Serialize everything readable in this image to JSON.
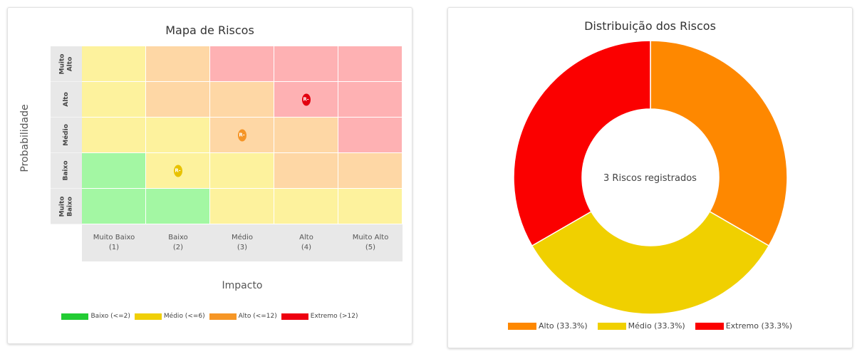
{
  "matrix": {
    "title": "Mapa de Riscos",
    "y_axis_label": "Probabilidade",
    "x_axis_label": "Impacto",
    "rows": [
      {
        "label_lines": [
          "Muito",
          "Alto"
        ],
        "cells": [
          "medium",
          "high",
          "extreme",
          "extreme",
          "extreme"
        ]
      },
      {
        "label_lines": [
          "Alto"
        ],
        "cells": [
          "medium",
          "high",
          "high",
          "extreme",
          "extreme"
        ]
      },
      {
        "label_lines": [
          "Médio"
        ],
        "cells": [
          "medium",
          "medium",
          "high",
          "high",
          "extreme"
        ]
      },
      {
        "label_lines": [
          "Baixo"
        ],
        "cells": [
          "low",
          "medium",
          "medium",
          "high",
          "high"
        ]
      },
      {
        "label_lines": [
          "Muito",
          "Baixo"
        ],
        "cells": [
          "low",
          "low",
          "medium",
          "medium",
          "medium"
        ]
      }
    ],
    "columns": [
      {
        "label": "Muito Baixo",
        "value": "(1)"
      },
      {
        "label": "Baixo",
        "value": "(2)"
      },
      {
        "label": "Médio",
        "value": "(3)"
      },
      {
        "label": "Alto",
        "value": "(4)"
      },
      {
        "label": "Muito Alto",
        "value": "(5)"
      }
    ],
    "cell_colors": {
      "low": "#a3f7a3",
      "medium": "#fdf29d",
      "high": "#fed7a5",
      "extreme": "#feb1b3"
    },
    "markers": [
      {
        "label": "R-",
        "row": 1,
        "col": 3,
        "color": "#e3000f"
      },
      {
        "label": "R-",
        "row": 2,
        "col": 2,
        "color": "#f59527"
      },
      {
        "label": "R-",
        "row": 3,
        "col": 1,
        "color": "#e8c200"
      }
    ],
    "legend": [
      {
        "label": "Baixo (<=2)",
        "color": "#22cc33"
      },
      {
        "label": "Médio (<=6)",
        "color": "#f0cf06"
      },
      {
        "label": "Alto (<=12)",
        "color": "#f69626"
      },
      {
        "label": "Extremo (>12)",
        "color": "#ee0010"
      }
    ]
  },
  "chart_data": {
    "type": "pie",
    "title": "Distribuição dos Riscos",
    "center_text": "3 Riscos registrados",
    "slices": [
      {
        "name": "Alto",
        "value": 1,
        "percent": 33.3,
        "color": "#fe8800",
        "legend_label": "Alto (33.3%)"
      },
      {
        "name": "Médio",
        "value": 1,
        "percent": 33.3,
        "color": "#f0d000",
        "legend_label": "Médio (33.3%)"
      },
      {
        "name": "Extremo",
        "value": 1,
        "percent": 33.3,
        "color": "#fb0000",
        "legend_label": "Extremo (33.3%)"
      }
    ],
    "legend_position": "bottom"
  }
}
